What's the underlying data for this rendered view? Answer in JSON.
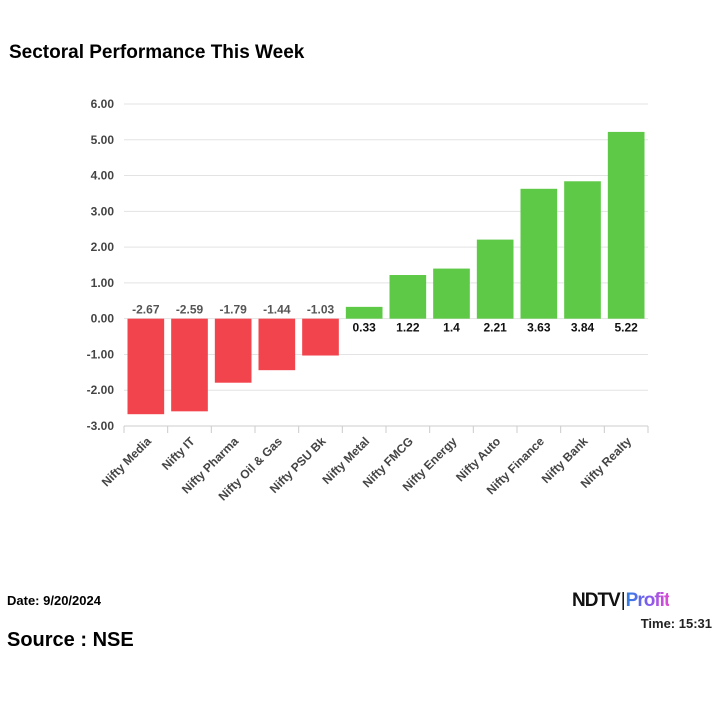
{
  "chart_data": {
    "type": "bar",
    "title": "Sectoral Performance This Week",
    "xlabel": "",
    "ylabel": "",
    "ylim": [
      -3,
      6
    ],
    "yticks": [
      "6.00",
      "5.00",
      "4.00",
      "3.00",
      "2.00",
      "1.00",
      "0.00",
      "-1.00",
      "-2.00",
      "-3.00"
    ],
    "categories": [
      "Nifty Media",
      "Nifty IT",
      "Nifty Pharma",
      "Nifty Oil & Gas",
      "Nifty PSU Bk",
      "Nifty Metal",
      "Nifty FMCG",
      "Nifty Energy",
      "Nifty Auto",
      "Nifty Finance",
      "Nifty Bank",
      "Nifty Realty"
    ],
    "values": [
      -2.67,
      -2.59,
      -1.79,
      -1.44,
      -1.03,
      0.33,
      1.22,
      1.4,
      2.21,
      3.63,
      3.84,
      5.22
    ],
    "value_labels": [
      "-2.67",
      "-2.59",
      "-1.79",
      "-1.44",
      "-1.03",
      "0.33",
      "1.22",
      "1.4",
      "2.21",
      "3.63",
      "3.84",
      "5.22"
    ],
    "grid": true,
    "colors": {
      "positive": "#5ec946",
      "negative": "#f2444d"
    }
  },
  "footer": {
    "date": "Date: 9/20/2024",
    "source": "Source : NSE",
    "time": "Time: 15:31",
    "logo_ndtv": "NDTV",
    "logo_profit": "Profit"
  }
}
